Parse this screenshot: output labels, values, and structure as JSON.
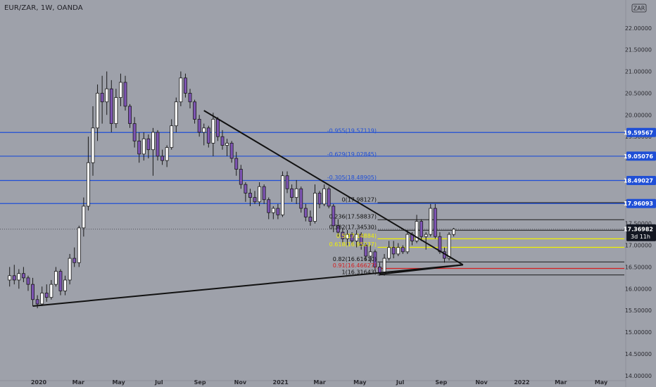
{
  "header": {
    "symbol": "EUR/ZAR, 1W, OANDA",
    "currency_badge": "ZAR"
  },
  "colors": {
    "background": "#9ea1aa",
    "bull_candle": "#ffffff",
    "bear_candle": "#7d54b3",
    "candle_outline": "#1a1a1a",
    "blue_level": "#1f4fd6",
    "fib_black": "#1a1a1a",
    "fib_yellow": "#f2f200",
    "fib_red": "#d42020",
    "trendline": "#111111",
    "price_badge": "#131722"
  },
  "chart_data": {
    "type": "candlestick",
    "symbol": "EUR/ZAR",
    "timeframe": "1W",
    "source": "OANDA",
    "ylim": [
      13.9,
      22.45
    ],
    "y_ticks": [
      "14.00000",
      "14.50000",
      "15.00000",
      "15.50000",
      "16.00000",
      "16.50000",
      "17.00000",
      "17.50000",
      "18.00000",
      "18.50000",
      "19.00000",
      "19.50000",
      "20.00000",
      "20.50000",
      "21.00000",
      "21.50000",
      "22.00000"
    ],
    "x_ticks": [
      {
        "label": "2020",
        "date": "2020-01-01"
      },
      {
        "label": "Mar",
        "date": "2020-03-01"
      },
      {
        "label": "May",
        "date": "2020-05-01"
      },
      {
        "label": "Jul",
        "date": "2020-07-01"
      },
      {
        "label": "Sep",
        "date": "2020-09-01"
      },
      {
        "label": "Nov",
        "date": "2020-11-01"
      },
      {
        "label": "2021",
        "date": "2021-01-01"
      },
      {
        "label": "Mar",
        "date": "2021-03-01"
      },
      {
        "label": "May",
        "date": "2021-05-01"
      },
      {
        "label": "Jul",
        "date": "2021-07-01"
      },
      {
        "label": "Sep",
        "date": "2021-09-01"
      },
      {
        "label": "Nov",
        "date": "2021-11-01"
      },
      {
        "label": "2022",
        "date": "2022-01-01"
      },
      {
        "label": "Mar",
        "date": "2022-03-01"
      },
      {
        "label": "May",
        "date": "2022-05-01"
      }
    ],
    "candles": [
      {
        "date": "2019-11-18",
        "o": 16.2,
        "h": 16.5,
        "l": 16.05,
        "c": 16.3
      },
      {
        "date": "2019-11-25",
        "o": 16.3,
        "h": 16.55,
        "l": 16.1,
        "c": 16.2
      },
      {
        "date": "2019-12-02",
        "o": 16.2,
        "h": 16.45,
        "l": 16.0,
        "c": 16.35
      },
      {
        "date": "2019-12-09",
        "o": 16.35,
        "h": 16.5,
        "l": 16.15,
        "c": 16.25
      },
      {
        "date": "2019-12-16",
        "o": 16.25,
        "h": 16.3,
        "l": 15.95,
        "c": 16.1
      },
      {
        "date": "2019-12-23",
        "o": 16.1,
        "h": 16.25,
        "l": 15.6,
        "c": 15.75
      },
      {
        "date": "2019-12-30",
        "o": 15.75,
        "h": 15.85,
        "l": 15.55,
        "c": 15.65
      },
      {
        "date": "2020-01-06",
        "o": 15.65,
        "h": 16.05,
        "l": 15.6,
        "c": 15.9
      },
      {
        "date": "2020-01-13",
        "o": 15.9,
        "h": 16.1,
        "l": 15.7,
        "c": 15.8
      },
      {
        "date": "2020-01-20",
        "o": 15.8,
        "h": 16.2,
        "l": 15.75,
        "c": 16.1
      },
      {
        "date": "2020-01-27",
        "o": 16.1,
        "h": 16.5,
        "l": 16.05,
        "c": 16.4
      },
      {
        "date": "2020-02-03",
        "o": 16.4,
        "h": 16.45,
        "l": 15.85,
        "c": 15.95
      },
      {
        "date": "2020-02-10",
        "o": 15.95,
        "h": 16.3,
        "l": 15.85,
        "c": 16.2
      },
      {
        "date": "2020-02-17",
        "o": 16.2,
        "h": 16.8,
        "l": 16.1,
        "c": 16.7
      },
      {
        "date": "2020-02-24",
        "o": 16.7,
        "h": 16.95,
        "l": 16.5,
        "c": 16.6
      },
      {
        "date": "2020-03-02",
        "o": 16.6,
        "h": 17.45,
        "l": 16.5,
        "c": 17.4
      },
      {
        "date": "2020-03-09",
        "o": 17.4,
        "h": 18.1,
        "l": 17.2,
        "c": 17.9
      },
      {
        "date": "2020-03-16",
        "o": 17.9,
        "h": 19.5,
        "l": 17.8,
        "c": 18.9
      },
      {
        "date": "2020-03-23",
        "o": 18.9,
        "h": 20.2,
        "l": 18.6,
        "c": 19.7
      },
      {
        "date": "2020-03-30",
        "o": 19.7,
        "h": 20.7,
        "l": 19.4,
        "c": 20.5
      },
      {
        "date": "2020-04-06",
        "o": 20.5,
        "h": 20.9,
        "l": 19.8,
        "c": 20.3
      },
      {
        "date": "2020-04-13",
        "o": 20.3,
        "h": 21.0,
        "l": 20.0,
        "c": 20.6
      },
      {
        "date": "2020-04-20",
        "o": 20.6,
        "h": 20.8,
        "l": 19.6,
        "c": 19.8
      },
      {
        "date": "2020-04-27",
        "o": 19.8,
        "h": 20.6,
        "l": 19.7,
        "c": 20.4
      },
      {
        "date": "2020-05-04",
        "o": 20.4,
        "h": 20.95,
        "l": 20.2,
        "c": 20.75
      },
      {
        "date": "2020-05-11",
        "o": 20.75,
        "h": 20.9,
        "l": 20.1,
        "c": 20.2
      },
      {
        "date": "2020-05-18",
        "o": 20.2,
        "h": 20.25,
        "l": 19.7,
        "c": 19.8
      },
      {
        "date": "2020-05-25",
        "o": 19.8,
        "h": 19.95,
        "l": 19.25,
        "c": 19.4
      },
      {
        "date": "2020-06-01",
        "o": 19.4,
        "h": 19.6,
        "l": 18.9,
        "c": 19.1
      },
      {
        "date": "2020-06-08",
        "o": 19.1,
        "h": 19.6,
        "l": 18.95,
        "c": 19.45
      },
      {
        "date": "2020-06-15",
        "o": 19.45,
        "h": 19.55,
        "l": 19.0,
        "c": 19.2
      },
      {
        "date": "2020-06-22",
        "o": 19.2,
        "h": 19.7,
        "l": 18.6,
        "c": 19.6
      },
      {
        "date": "2020-06-29",
        "o": 19.6,
        "h": 19.65,
        "l": 18.95,
        "c": 19.05
      },
      {
        "date": "2020-07-06",
        "o": 19.05,
        "h": 19.2,
        "l": 18.85,
        "c": 18.95
      },
      {
        "date": "2020-07-13",
        "o": 18.95,
        "h": 19.3,
        "l": 18.8,
        "c": 19.25
      },
      {
        "date": "2020-07-20",
        "o": 19.25,
        "h": 19.9,
        "l": 19.2,
        "c": 19.75
      },
      {
        "date": "2020-07-27",
        "o": 19.75,
        "h": 20.4,
        "l": 19.6,
        "c": 20.3
      },
      {
        "date": "2020-08-03",
        "o": 20.3,
        "h": 21.0,
        "l": 20.2,
        "c": 20.85
      },
      {
        "date": "2020-08-10",
        "o": 20.85,
        "h": 20.95,
        "l": 20.4,
        "c": 20.5
      },
      {
        "date": "2020-08-17",
        "o": 20.5,
        "h": 20.6,
        "l": 20.15,
        "c": 20.3
      },
      {
        "date": "2020-08-24",
        "o": 20.3,
        "h": 20.35,
        "l": 19.8,
        "c": 19.9
      },
      {
        "date": "2020-08-31",
        "o": 19.9,
        "h": 20.0,
        "l": 19.5,
        "c": 19.6
      },
      {
        "date": "2020-09-07",
        "o": 19.6,
        "h": 19.8,
        "l": 19.3,
        "c": 19.7
      },
      {
        "date": "2020-09-14",
        "o": 19.7,
        "h": 19.75,
        "l": 19.25,
        "c": 19.35
      },
      {
        "date": "2020-09-21",
        "o": 19.35,
        "h": 20.05,
        "l": 19.05,
        "c": 19.9
      },
      {
        "date": "2020-09-28",
        "o": 19.9,
        "h": 19.95,
        "l": 19.4,
        "c": 19.5
      },
      {
        "date": "2020-10-05",
        "o": 19.5,
        "h": 19.65,
        "l": 19.2,
        "c": 19.3
      },
      {
        "date": "2020-10-12",
        "o": 19.3,
        "h": 19.45,
        "l": 19.05,
        "c": 19.35
      },
      {
        "date": "2020-10-19",
        "o": 19.35,
        "h": 19.4,
        "l": 18.9,
        "c": 19.0
      },
      {
        "date": "2020-10-26",
        "o": 19.0,
        "h": 19.15,
        "l": 18.6,
        "c": 18.75
      },
      {
        "date": "2020-11-02",
        "o": 18.75,
        "h": 18.85,
        "l": 18.3,
        "c": 18.4
      },
      {
        "date": "2020-11-09",
        "o": 18.4,
        "h": 18.45,
        "l": 18.0,
        "c": 18.2
      },
      {
        "date": "2020-11-16",
        "o": 18.2,
        "h": 18.3,
        "l": 17.9,
        "c": 18.1
      },
      {
        "date": "2020-11-23",
        "o": 18.1,
        "h": 18.25,
        "l": 17.95,
        "c": 18.0
      },
      {
        "date": "2020-11-30",
        "o": 18.0,
        "h": 18.45,
        "l": 17.9,
        "c": 18.35
      },
      {
        "date": "2020-12-07",
        "o": 18.35,
        "h": 18.4,
        "l": 17.95,
        "c": 18.05
      },
      {
        "date": "2020-12-14",
        "o": 18.05,
        "h": 18.1,
        "l": 17.6,
        "c": 17.75
      },
      {
        "date": "2020-12-21",
        "o": 17.75,
        "h": 17.9,
        "l": 17.6,
        "c": 17.85
      },
      {
        "date": "2020-12-28",
        "o": 17.85,
        "h": 17.95,
        "l": 17.6,
        "c": 17.7
      },
      {
        "date": "2021-01-04",
        "o": 17.7,
        "h": 18.7,
        "l": 17.65,
        "c": 18.6
      },
      {
        "date": "2021-01-11",
        "o": 18.6,
        "h": 18.7,
        "l": 18.2,
        "c": 18.3
      },
      {
        "date": "2021-01-18",
        "o": 18.3,
        "h": 18.4,
        "l": 18.0,
        "c": 18.1
      },
      {
        "date": "2021-01-25",
        "o": 18.1,
        "h": 18.5,
        "l": 17.95,
        "c": 18.3
      },
      {
        "date": "2021-02-01",
        "o": 18.3,
        "h": 18.35,
        "l": 17.75,
        "c": 17.85
      },
      {
        "date": "2021-02-08",
        "o": 17.85,
        "h": 17.95,
        "l": 17.55,
        "c": 17.65
      },
      {
        "date": "2021-02-15",
        "o": 17.65,
        "h": 17.8,
        "l": 17.45,
        "c": 17.55
      },
      {
        "date": "2021-02-22",
        "o": 17.55,
        "h": 18.4,
        "l": 17.5,
        "c": 18.2
      },
      {
        "date": "2021-03-01",
        "o": 18.2,
        "h": 18.25,
        "l": 17.85,
        "c": 17.95
      },
      {
        "date": "2021-03-08",
        "o": 17.95,
        "h": 18.4,
        "l": 17.9,
        "c": 18.3
      },
      {
        "date": "2021-03-15",
        "o": 18.3,
        "h": 18.35,
        "l": 17.85,
        "c": 17.9
      },
      {
        "date": "2021-03-22",
        "o": 17.9,
        "h": 17.95,
        "l": 17.3,
        "c": 17.45
      },
      {
        "date": "2021-03-29",
        "o": 17.45,
        "h": 17.6,
        "l": 17.2,
        "c": 17.3
      },
      {
        "date": "2021-04-05",
        "o": 17.3,
        "h": 17.4,
        "l": 17.05,
        "c": 17.15
      },
      {
        "date": "2021-04-12",
        "o": 17.15,
        "h": 17.35,
        "l": 17.0,
        "c": 17.25
      },
      {
        "date": "2021-04-19",
        "o": 17.25,
        "h": 17.3,
        "l": 17.0,
        "c": 17.1
      },
      {
        "date": "2021-04-26",
        "o": 17.1,
        "h": 17.35,
        "l": 16.95,
        "c": 17.25
      },
      {
        "date": "2021-05-03",
        "o": 17.25,
        "h": 17.3,
        "l": 16.9,
        "c": 17.0
      },
      {
        "date": "2021-05-10",
        "o": 17.0,
        "h": 17.05,
        "l": 16.65,
        "c": 16.75
      },
      {
        "date": "2021-05-17",
        "o": 16.75,
        "h": 17.0,
        "l": 16.6,
        "c": 16.85
      },
      {
        "date": "2021-05-24",
        "o": 16.85,
        "h": 16.9,
        "l": 16.4,
        "c": 16.5
      },
      {
        "date": "2021-05-31",
        "o": 16.5,
        "h": 16.6,
        "l": 16.3,
        "c": 16.35
      },
      {
        "date": "2021-06-07",
        "o": 16.35,
        "h": 16.8,
        "l": 16.3,
        "c": 16.7
      },
      {
        "date": "2021-06-14",
        "o": 16.7,
        "h": 17.1,
        "l": 16.65,
        "c": 16.95
      },
      {
        "date": "2021-06-21",
        "o": 16.95,
        "h": 17.1,
        "l": 16.7,
        "c": 16.8
      },
      {
        "date": "2021-06-28",
        "o": 16.8,
        "h": 17.05,
        "l": 16.75,
        "c": 16.95
      },
      {
        "date": "2021-07-05",
        "o": 16.95,
        "h": 17.0,
        "l": 16.8,
        "c": 16.85
      },
      {
        "date": "2021-07-12",
        "o": 16.85,
        "h": 17.35,
        "l": 16.8,
        "c": 17.25
      },
      {
        "date": "2021-07-19",
        "o": 17.25,
        "h": 17.3,
        "l": 17.0,
        "c": 17.1
      },
      {
        "date": "2021-07-26",
        "o": 17.1,
        "h": 17.7,
        "l": 17.05,
        "c": 17.55
      },
      {
        "date": "2021-08-02",
        "o": 17.55,
        "h": 17.6,
        "l": 17.1,
        "c": 17.2
      },
      {
        "date": "2021-08-09",
        "o": 17.2,
        "h": 17.3,
        "l": 16.9,
        "c": 17.25
      },
      {
        "date": "2021-08-16",
        "o": 17.25,
        "h": 17.95,
        "l": 17.2,
        "c": 17.85
      },
      {
        "date": "2021-08-23",
        "o": 17.85,
        "h": 17.95,
        "l": 17.15,
        "c": 17.2
      },
      {
        "date": "2021-08-30",
        "o": 17.2,
        "h": 17.3,
        "l": 16.8,
        "c": 16.85
      },
      {
        "date": "2021-09-06",
        "o": 16.85,
        "h": 16.95,
        "l": 16.6,
        "c": 16.7
      },
      {
        "date": "2021-09-13",
        "o": 16.7,
        "h": 17.3,
        "l": 16.65,
        "c": 17.25
      },
      {
        "date": "2021-09-20",
        "o": 17.25,
        "h": 17.4,
        "l": 17.2,
        "c": 17.37
      }
    ],
    "horizontal_levels": [
      {
        "price": 19.59567,
        "label": "19.59567",
        "style": "blue"
      },
      {
        "price": 19.05076,
        "label": "19.05076",
        "style": "blue"
      },
      {
        "price": 18.49027,
        "label": "18.49027",
        "style": "blue"
      },
      {
        "price": 17.96093,
        "label": "17.96093",
        "style": "blue"
      }
    ],
    "last_price": {
      "value": "17.36982",
      "countdown": "3d 11h"
    },
    "fib_levels": [
      {
        "label": "-0.955(19.57119)",
        "price": 19.57119,
        "color": "blue"
      },
      {
        "label": "-0.629(19.02845)",
        "price": 19.02845,
        "color": "blue"
      },
      {
        "label": "-0.305(18.48905)",
        "price": 18.48905,
        "color": "blue"
      },
      {
        "label": "0(17.98127)",
        "price": 17.98127,
        "color": "black"
      },
      {
        "label": "0.236(17.58837)",
        "price": 17.58837,
        "color": "black"
      },
      {
        "label": "0.382(17.34530)",
        "price": 17.3453,
        "color": "black"
      },
      {
        "label": "0.5(17.14884)",
        "price": 17.14884,
        "color": "yellow"
      },
      {
        "label": "0.618(16.95237)",
        "price": 16.95237,
        "color": "yellow"
      },
      {
        "label": "0.82(16.61610)",
        "price": 16.6161,
        "color": "black"
      },
      {
        "label": "0.91(16.46627)",
        "price": 16.46627,
        "color": "red"
      },
      {
        "label": "1(16.31643)",
        "price": 16.31643,
        "color": "black"
      }
    ],
    "trendlines": [
      {
        "from": {
          "date": "2019-12-23",
          "price": 15.6
        },
        "to": {
          "date": "2021-10-04",
          "price": 16.55
        }
      },
      {
        "from": {
          "date": "2020-09-07",
          "price": 20.1
        },
        "to": {
          "date": "2021-10-04",
          "price": 16.55
        }
      },
      {
        "from": {
          "date": "2021-05-31",
          "price": 16.33
        },
        "to": {
          "date": "2021-10-04",
          "price": 16.55
        }
      }
    ]
  }
}
